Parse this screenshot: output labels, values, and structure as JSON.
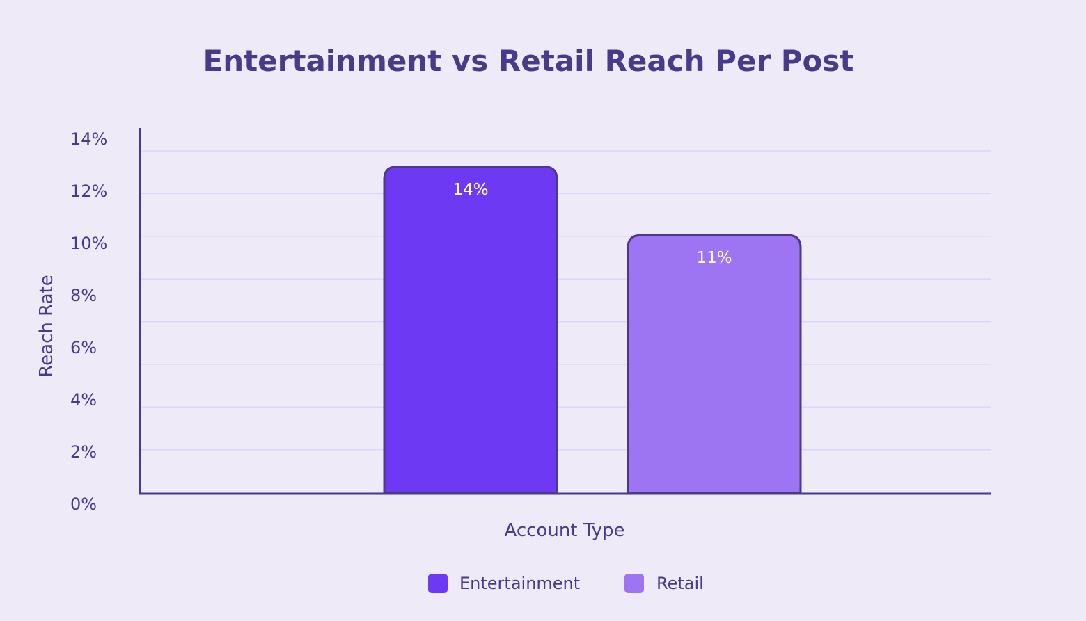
{
  "chart_data": {
    "type": "bar",
    "title": "Entertainment vs Retail Reach Per Post",
    "xlabel": "Account Type",
    "ylabel": "Reach Rate",
    "ylim": [
      0,
      14
    ],
    "yticks": [
      0,
      2,
      4,
      6,
      8,
      10,
      12,
      14
    ],
    "ytick_labels": [
      "0%",
      "2%",
      "4%",
      "6%",
      "8%",
      "10%",
      "12%",
      "14%"
    ],
    "grid": true,
    "legend_position": "bottom",
    "series": [
      {
        "name": "Entertainment",
        "value": 14,
        "label": "14%",
        "color": "#6d39f2"
      },
      {
        "name": "Retail",
        "value": 11,
        "label": "11%",
        "color": "#9d74f2"
      }
    ],
    "colors": {
      "background": "#efeaf8",
      "text": "#4a3b8a",
      "axis": "#4a3b8a",
      "grid": "#dcd6f6",
      "bar_outline": "#4a3b8a",
      "bar_label": "#ffffff"
    }
  }
}
